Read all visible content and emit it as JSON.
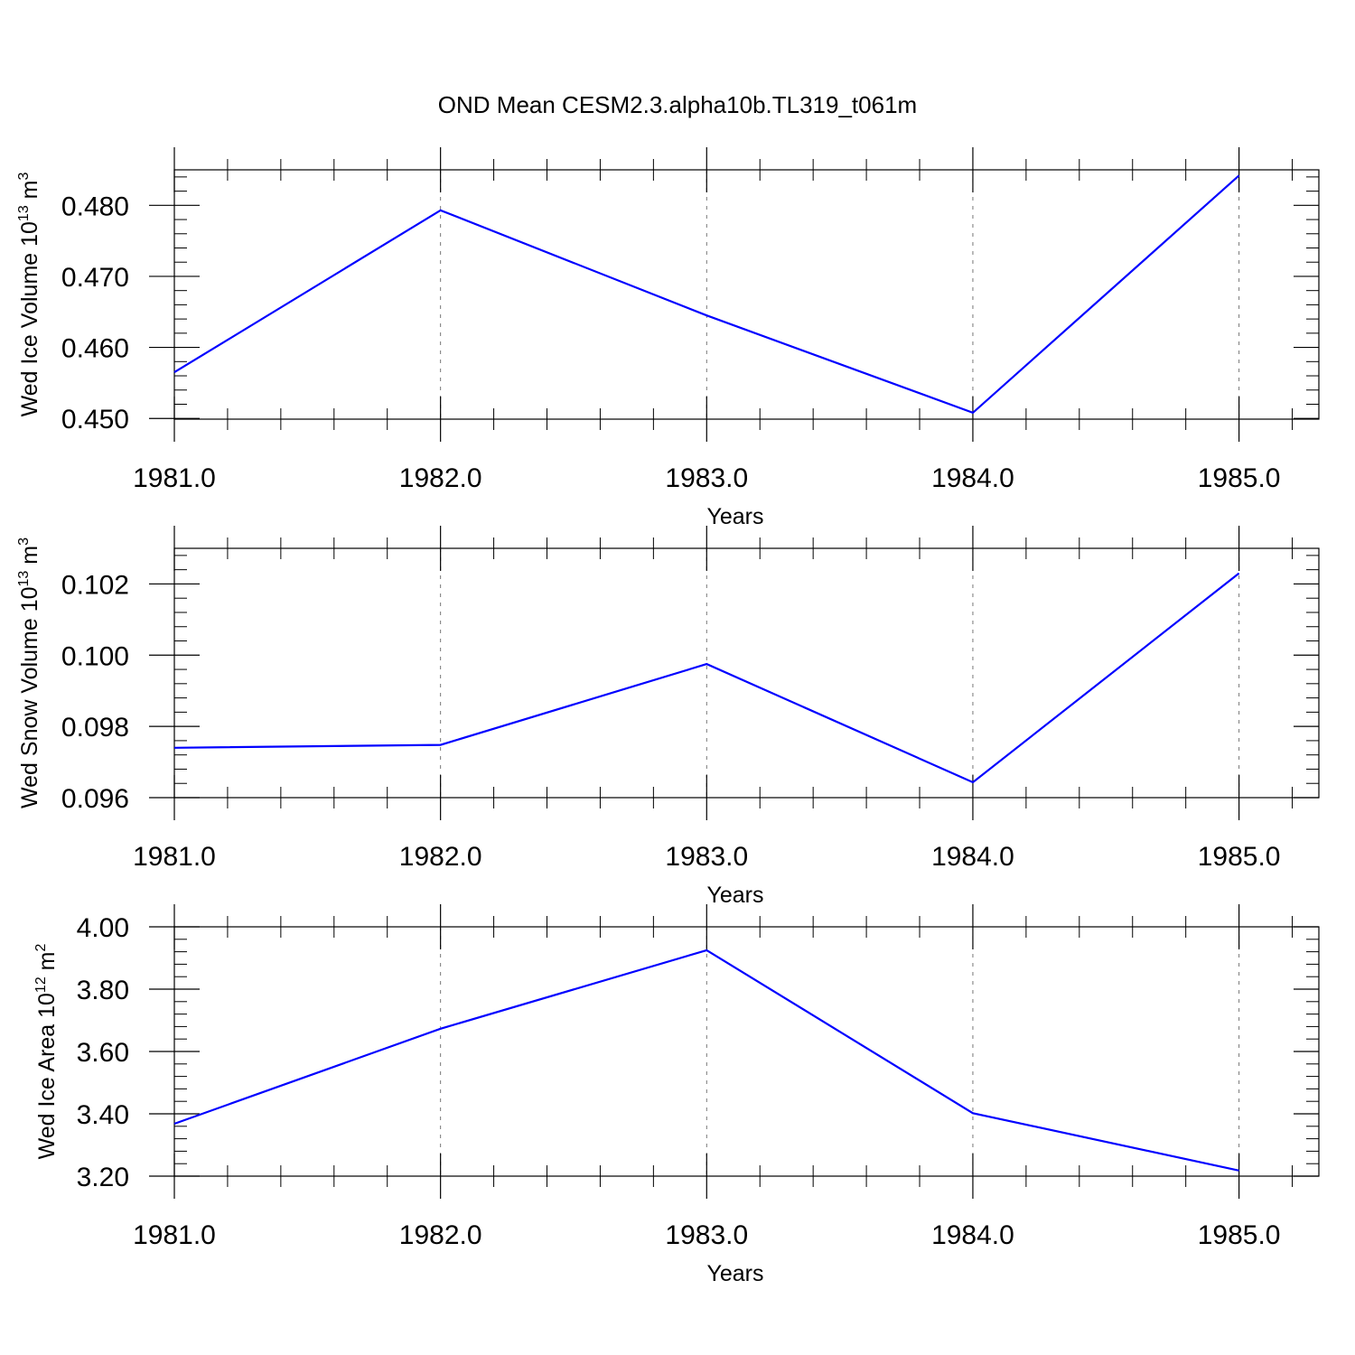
{
  "title": "OND Mean CESM2.3.alpha10b.TL319_t061m",
  "line_color": "#0000ff",
  "chart_data": [
    {
      "type": "line",
      "xlabel": "Years",
      "ylabel": "Wed Ice Volume 10",
      "ylabel_exponent": "13",
      "ylabel_unit": " m",
      "ylabel_unit_exponent": "3",
      "x": [
        1981,
        1982,
        1983,
        1984,
        1985
      ],
      "y": [
        0.4565,
        0.4793,
        0.4645,
        0.4508,
        0.4842
      ],
      "xlim": [
        1981,
        1985.3
      ],
      "ylim": [
        0.4499,
        0.485
      ],
      "xticks": [
        "1981.0",
        "1982.0",
        "1983.0",
        "1984.0",
        "1985.0"
      ],
      "yticks": [
        "0.450",
        "0.460",
        "0.470",
        "0.480"
      ],
      "ytick_values": [
        0.45,
        0.46,
        0.47,
        0.48
      ],
      "grid": "vertical dashed"
    },
    {
      "type": "line",
      "xlabel": "Years",
      "ylabel": "Wed Snow Volume 10",
      "ylabel_exponent": "13",
      "ylabel_unit": " m",
      "ylabel_unit_exponent": "3",
      "x": [
        1981,
        1982,
        1983,
        1984,
        1985
      ],
      "y": [
        0.0974,
        0.09748,
        0.09975,
        0.09643,
        0.1023
      ],
      "xlim": [
        1981,
        1985.3
      ],
      "ylim": [
        0.096,
        0.103
      ],
      "xticks": [
        "1981.0",
        "1982.0",
        "1983.0",
        "1984.0",
        "1985.0"
      ],
      "yticks": [
        "0.096",
        "0.098",
        "0.100",
        "0.102"
      ],
      "ytick_values": [
        0.096,
        0.098,
        0.1,
        0.102
      ],
      "grid": "vertical dashed"
    },
    {
      "type": "line",
      "xlabel": "Years",
      "ylabel": "Wed Ice Area 10",
      "ylabel_exponent": "12",
      "ylabel_unit": " m",
      "ylabel_unit_exponent": "2",
      "x": [
        1981,
        1982,
        1983,
        1984,
        1985
      ],
      "y": [
        3.368,
        3.673,
        3.925,
        3.402,
        3.218
      ],
      "xlim": [
        1981,
        1985.3
      ],
      "ylim": [
        3.2,
        4.0
      ],
      "xticks": [
        "1981.0",
        "1982.0",
        "1983.0",
        "1984.0",
        "1985.0"
      ],
      "yticks": [
        "3.20",
        "3.40",
        "3.60",
        "3.80",
        "4.00"
      ],
      "ytick_values": [
        3.2,
        3.4,
        3.6,
        3.8,
        4.0
      ],
      "grid": "vertical dashed"
    }
  ]
}
